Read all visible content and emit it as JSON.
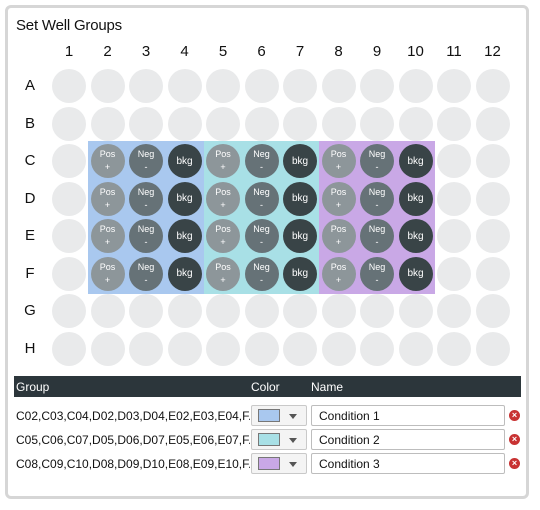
{
  "title": "Set Well Groups",
  "columns": [
    "1",
    "2",
    "3",
    "4",
    "5",
    "6",
    "7",
    "8",
    "9",
    "10",
    "11",
    "12"
  ],
  "rows": [
    "A",
    "B",
    "C",
    "D",
    "E",
    "F",
    "G",
    "H"
  ],
  "well_labels": {
    "pos": {
      "top": "Pos",
      "bottom": "+"
    },
    "neg": {
      "top": "Neg",
      "bottom": "-"
    },
    "bkg": "bkg"
  },
  "colors": {
    "group1": "#a9c8ef",
    "group2": "#a8e0e6",
    "group3": "#c9a8e6",
    "empty_well": "#e9eaeb",
    "pos_well": "#8d969a",
    "neg_well": "#667277",
    "bkg_well": "#394447",
    "header_bg": "#2c363b",
    "delete": "#c83232"
  },
  "table": {
    "headers": {
      "group": "Group",
      "color": "Color",
      "name": "Name"
    },
    "groups": [
      {
        "wells": "C02,C03,C04,D02,D03,D04,E02,E03,E04,F...",
        "color": "#a9c8ef",
        "name": "Condition 1"
      },
      {
        "wells": "C05,C06,C07,D05,D06,D07,E05,E06,E07,F...",
        "color": "#a8e0e6",
        "name": "Condition 2"
      },
      {
        "wells": "C08,C09,C10,D08,D09,D10,E08,E09,E10,F...",
        "color": "#c9a8e6",
        "name": "Condition 3"
      }
    ]
  },
  "icons": {
    "dropdown": "chevron-down-icon",
    "delete": "close-circle-icon"
  }
}
